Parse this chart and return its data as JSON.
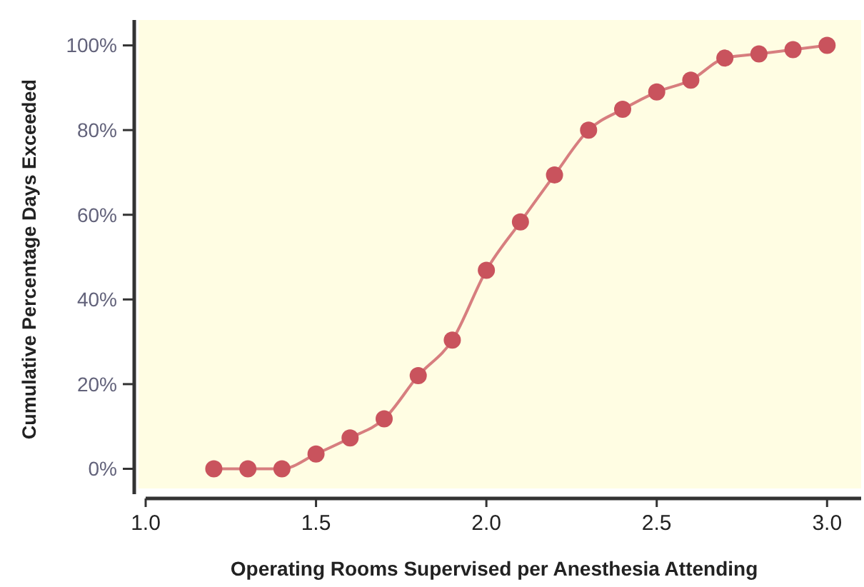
{
  "chart_data": {
    "type": "line",
    "xlabel": "Operating Rooms Supervised per Anesthesia Attending",
    "ylabel": "Cumulative Percentage Days Exceeded",
    "x": [
      1.2,
      1.3,
      1.4,
      1.5,
      1.6,
      1.7,
      1.8,
      1.9,
      2.0,
      2.1,
      2.2,
      2.3,
      2.4,
      2.5,
      2.6,
      2.7,
      2.8,
      2.9,
      3.0
    ],
    "series": [
      {
        "color": "#c9535d",
        "values": [
          0,
          0,
          0,
          3.5,
          7.3,
          11.8,
          22,
          30.4,
          46.9,
          58.3,
          69.4,
          80,
          84.9,
          89,
          91.8,
          97,
          98,
          99,
          100
        ]
      }
    ],
    "marker": "circle",
    "line_style": "solid",
    "xlim": [
      1.0,
      3.1
    ],
    "xticks": [
      {
        "value": 1,
        "label": "1.0"
      },
      1.5,
      {
        "value": 2,
        "label": "2.0"
      },
      2.5,
      {
        "value": 3,
        "label": "3.0"
      }
    ],
    "ylim": [
      -7,
      106
    ],
    "yticks": [
      {
        "value": 0,
        "label": "0%"
      },
      {
        "value": 20,
        "label": "20%"
      },
      {
        "value": 40,
        "label": "40%"
      },
      {
        "value": 60,
        "label": "60%"
      },
      {
        "value": 80,
        "label": "80%"
      },
      {
        "value": 100,
        "label": "100%"
      }
    ]
  }
}
